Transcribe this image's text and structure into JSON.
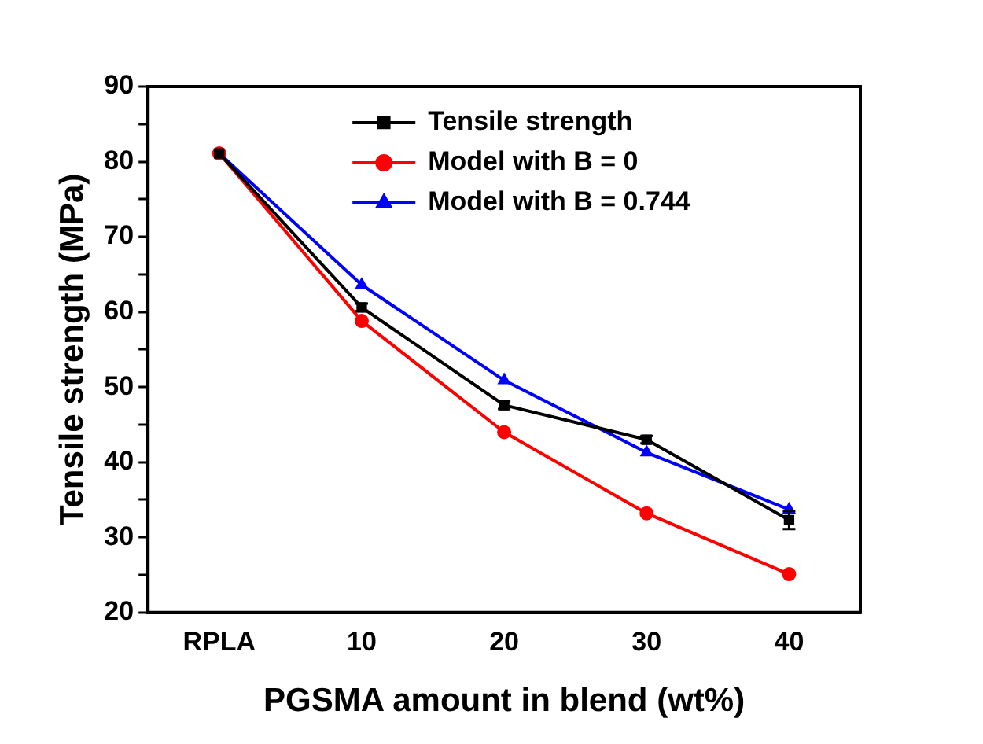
{
  "chart_data": {
    "type": "line",
    "xlabel": "PGSMA amount in blend (wt%)",
    "ylabel": "Tensile strength (MPa)",
    "categories": [
      "RPLA",
      "10",
      "20",
      "30",
      "40"
    ],
    "ylim": [
      20,
      90
    ],
    "yticks": [
      20,
      {
        "value": 25,
        "label": null
      },
      30,
      {
        "value": 35,
        "label": null
      },
      40,
      {
        "value": 45,
        "label": null
      },
      50,
      {
        "value": 55,
        "label": null
      },
      60,
      {
        "value": 65,
        "label": null
      },
      70,
      {
        "value": 75,
        "label": null
      },
      80,
      {
        "value": 85,
        "label": null
      },
      90
    ],
    "series": [
      {
        "name": "Tensile strength",
        "color": "#000000",
        "marker": "square",
        "values": [
          81.1,
          60.6,
          47.6,
          43.0,
          32.3
        ],
        "errors": [
          null,
          0.5,
          0.5,
          0.5,
          1.2
        ]
      },
      {
        "name": "Model with B = 0",
        "color": "#ff0000",
        "marker": "circle",
        "values": [
          81.1,
          58.8,
          44.0,
          33.2,
          25.1
        ]
      },
      {
        "name": "Model with B = 0.744",
        "color": "#0000ff",
        "marker": "triangle",
        "values": [
          81.1,
          63.6,
          50.9,
          41.3,
          33.7
        ]
      }
    ],
    "legend": "top right",
    "grid": false,
    "line_style": "solid"
  }
}
